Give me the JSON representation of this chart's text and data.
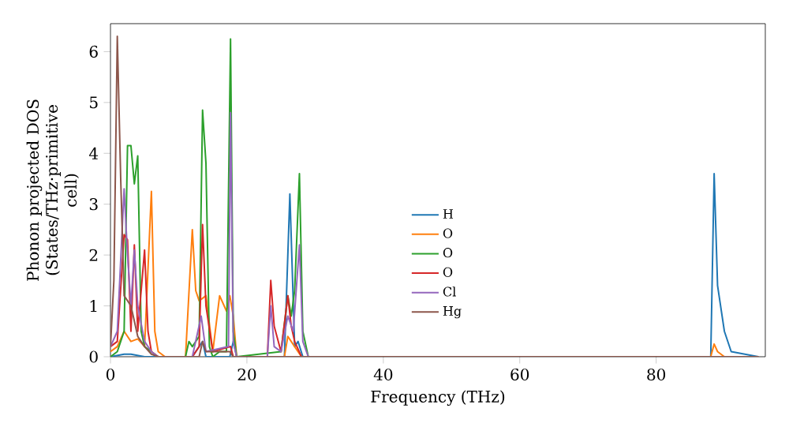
{
  "chart_data": {
    "type": "line",
    "xlabel": "Frequency (THz)",
    "ylabel": "Phonon projected DOS (States/THz·primitive cell)",
    "xlim": [
      0,
      96
    ],
    "ylim": [
      0,
      6.55
    ],
    "xticks": [
      0,
      20,
      40,
      60,
      80
    ],
    "yticks": [
      0,
      1,
      2,
      3,
      4,
      5,
      6
    ],
    "grid": false,
    "legend": "center",
    "marker": "none",
    "line_style": "solid",
    "series": [
      {
        "name": "H",
        "color": "#1f77b4",
        "x": [
          0,
          2,
          3,
          5,
          12,
          13.5,
          14,
          17.5,
          18,
          18.5,
          25.5,
          26.3,
          27,
          27.5,
          28.2,
          88,
          88.5,
          89,
          90,
          91,
          95
        ],
        "values": [
          0,
          0.05,
          0.05,
          0,
          0,
          0.3,
          0,
          0,
          0.3,
          0,
          0,
          3.2,
          0.2,
          0.3,
          0,
          0,
          3.6,
          1.4,
          0.5,
          0.1,
          0
        ]
      },
      {
        "name": "O",
        "color": "#ff7f0e",
        "x": [
          0,
          1,
          2,
          3,
          4,
          5,
          6,
          6.5,
          7,
          8,
          11,
          12,
          12.5,
          13,
          14,
          15,
          16,
          17,
          17.5,
          18,
          18.5,
          25.5,
          26,
          27,
          28,
          88,
          88.5,
          89,
          90,
          95
        ],
        "values": [
          0.1,
          0.2,
          0.5,
          0.3,
          0.35,
          0.2,
          3.25,
          0.5,
          0.1,
          0,
          0,
          2.5,
          1.3,
          1.1,
          1.2,
          0.1,
          1.2,
          0.9,
          1.2,
          0.8,
          0,
          0,
          0.4,
          0.2,
          0,
          0,
          0.25,
          0.1,
          0,
          0
        ]
      },
      {
        "name": "O",
        "color": "#2ca02c",
        "x": [
          0,
          1,
          2,
          2.5,
          3,
          3.5,
          4,
          4.5,
          5,
          6,
          7,
          11,
          11.5,
          12,
          13,
          13.5,
          14,
          14.5,
          15,
          16,
          17,
          17.6,
          18,
          18.5,
          25,
          26,
          26.5,
          27,
          27.7,
          28.2,
          29,
          95
        ],
        "values": [
          0,
          0.1,
          0.5,
          4.15,
          4.15,
          3.4,
          3.95,
          0.5,
          0.2,
          0.1,
          0,
          0,
          0.3,
          0.2,
          0.4,
          4.85,
          3.8,
          0.2,
          0,
          0.1,
          0.1,
          6.25,
          0.5,
          0,
          0.1,
          1.2,
          0.8,
          1.3,
          3.6,
          0.5,
          0,
          0
        ]
      },
      {
        "name": "O",
        "color": "#d62728",
        "x": [
          0,
          1,
          2,
          2.5,
          3,
          3.5,
          4,
          5,
          5.5,
          6,
          7,
          12,
          13,
          13.5,
          14,
          15,
          17.6,
          18,
          23,
          23.5,
          24,
          25,
          26,
          26.5,
          27,
          28,
          95
        ],
        "values": [
          0.2,
          0.3,
          2.4,
          2.3,
          0.5,
          2.2,
          0.5,
          2.1,
          0.5,
          0.1,
          0,
          0,
          0.2,
          2.6,
          1,
          0.1,
          0.2,
          0,
          0,
          1.5,
          0.6,
          0.1,
          1.2,
          0.6,
          0.3,
          0,
          0
        ]
      },
      {
        "name": "Cl",
        "color": "#9467bd",
        "x": [
          0,
          1,
          2,
          2.5,
          3,
          3.5,
          4,
          5,
          6,
          7,
          12,
          13.3,
          14,
          17.3,
          17.6,
          18,
          18.5,
          23,
          23.5,
          24,
          25,
          26,
          26.8,
          27.7,
          28.2,
          29,
          95
        ],
        "values": [
          0.2,
          0.5,
          3.3,
          2,
          1,
          2.1,
          1,
          0.3,
          0.1,
          0,
          0,
          0.8,
          0.1,
          0.2,
          4.8,
          0.3,
          0,
          0,
          1,
          0.2,
          0.1,
          0.8,
          0.5,
          2.2,
          0.3,
          0,
          0
        ]
      },
      {
        "name": "Hg",
        "color": "#8c564b",
        "x": [
          0,
          0.5,
          1,
          1.5,
          2,
          3,
          4,
          5,
          6,
          7,
          13,
          13.5,
          14,
          17.5,
          18,
          95
        ],
        "values": [
          0.2,
          1.5,
          6.3,
          3.5,
          1.2,
          1,
          0.4,
          0.2,
          0.05,
          0,
          0,
          0.3,
          0.1,
          0.1,
          0,
          0
        ]
      }
    ]
  }
}
